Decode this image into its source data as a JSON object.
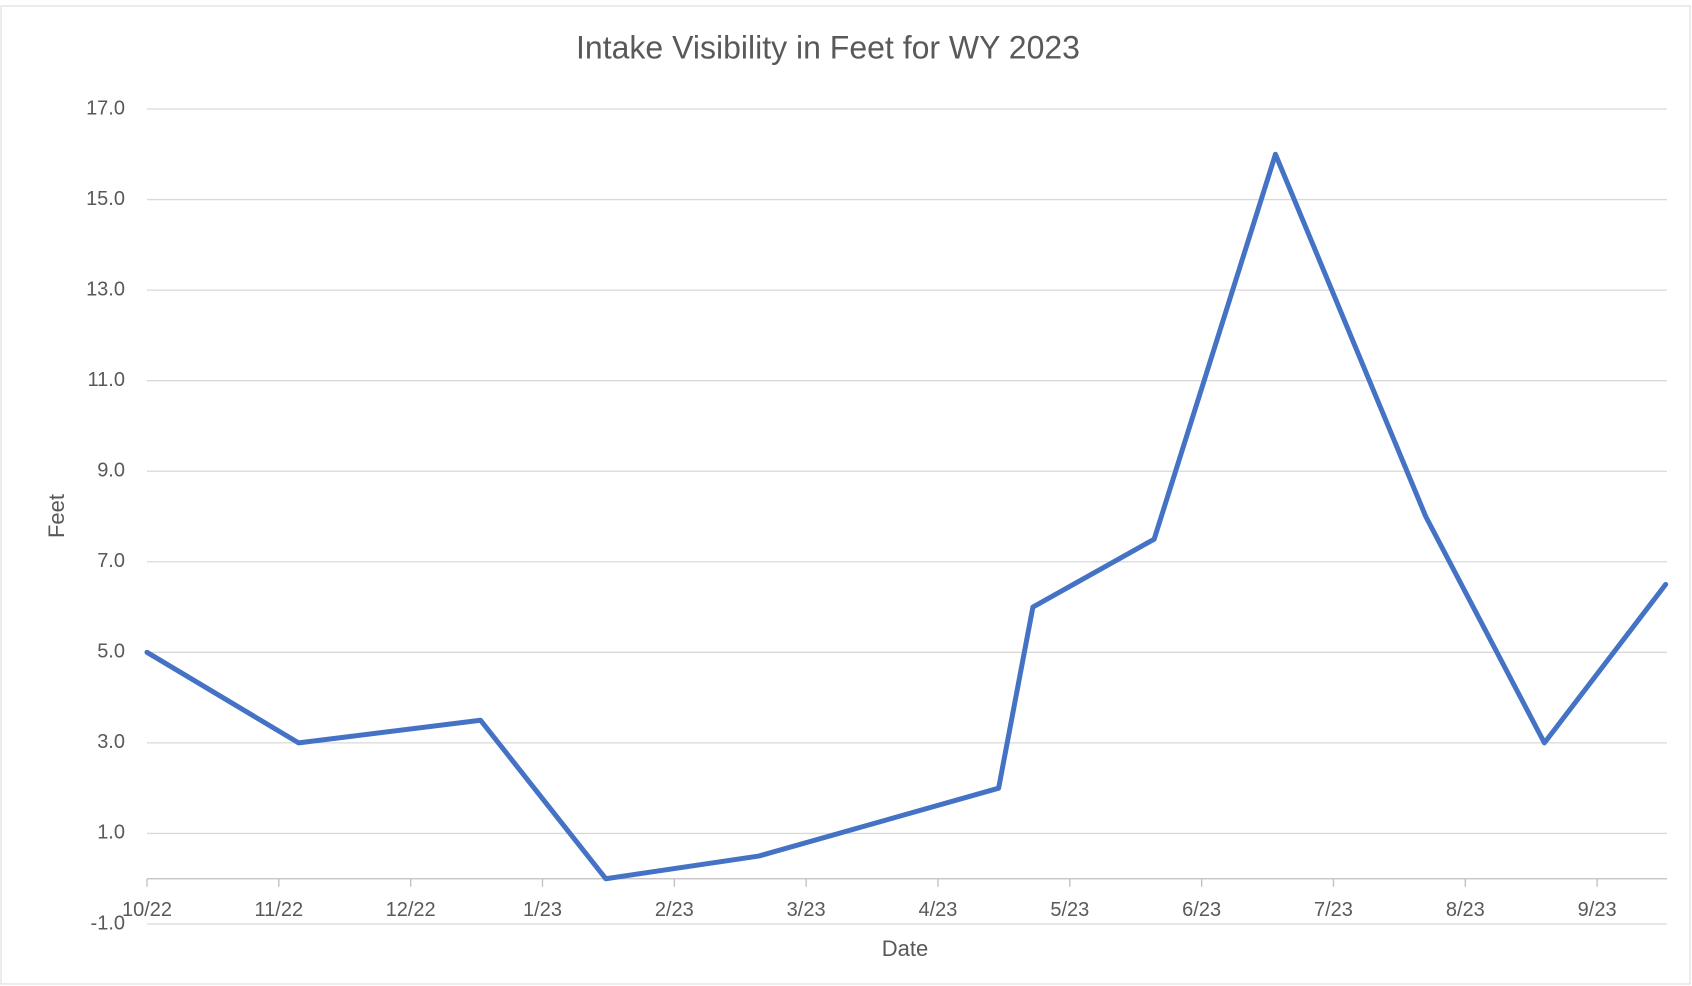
{
  "chart_data": {
    "type": "line",
    "title": "Intake Visibility in Feet for WY 2023",
    "x_label": "Date",
    "y_label": "Feet",
    "x": [
      0,
      1.15,
      2.53,
      3.48,
      4.64,
      6.46,
      6.72,
      7.64,
      8.56,
      9.7,
      10.6,
      11.52
    ],
    "series": [
      {
        "name": "Feet",
        "color": "#4472c4",
        "values": [
          5,
          3,
          3.5,
          0,
          0.5,
          2,
          6,
          7.5,
          16,
          8,
          3,
          6.5
        ]
      }
    ],
    "xlim": [
      0,
      11.53
    ],
    "xticks": [
      {
        "value": 0,
        "label": "10/22"
      },
      {
        "value": 1,
        "label": "11/22"
      },
      {
        "value": 2,
        "label": "12/22"
      },
      {
        "value": 3,
        "label": "1/23"
      },
      {
        "value": 4,
        "label": "2/23"
      },
      {
        "value": 5,
        "label": "3/23"
      },
      {
        "value": 6,
        "label": "4/23"
      },
      {
        "value": 7,
        "label": "5/23"
      },
      {
        "value": 8,
        "label": "6/23"
      },
      {
        "value": 9,
        "label": "7/23"
      },
      {
        "value": 10,
        "label": "8/23"
      },
      {
        "value": 11,
        "label": "9/23"
      }
    ],
    "ylim": [
      -1,
      17
    ],
    "yticks": [
      {
        "value": -1,
        "label": "-1.0"
      },
      {
        "value": 1,
        "label": "1.0"
      },
      {
        "value": 3,
        "label": "3.0"
      },
      {
        "value": 5,
        "label": "5.0"
      },
      {
        "value": 7,
        "label": "7.0"
      },
      {
        "value": 9,
        "label": "9.0"
      },
      {
        "value": 11,
        "label": "11.0"
      },
      {
        "value": 13,
        "label": "13.0"
      },
      {
        "value": 15,
        "label": "15.0"
      },
      {
        "value": 17,
        "label": "17.0"
      }
    ],
    "grid": true
  }
}
